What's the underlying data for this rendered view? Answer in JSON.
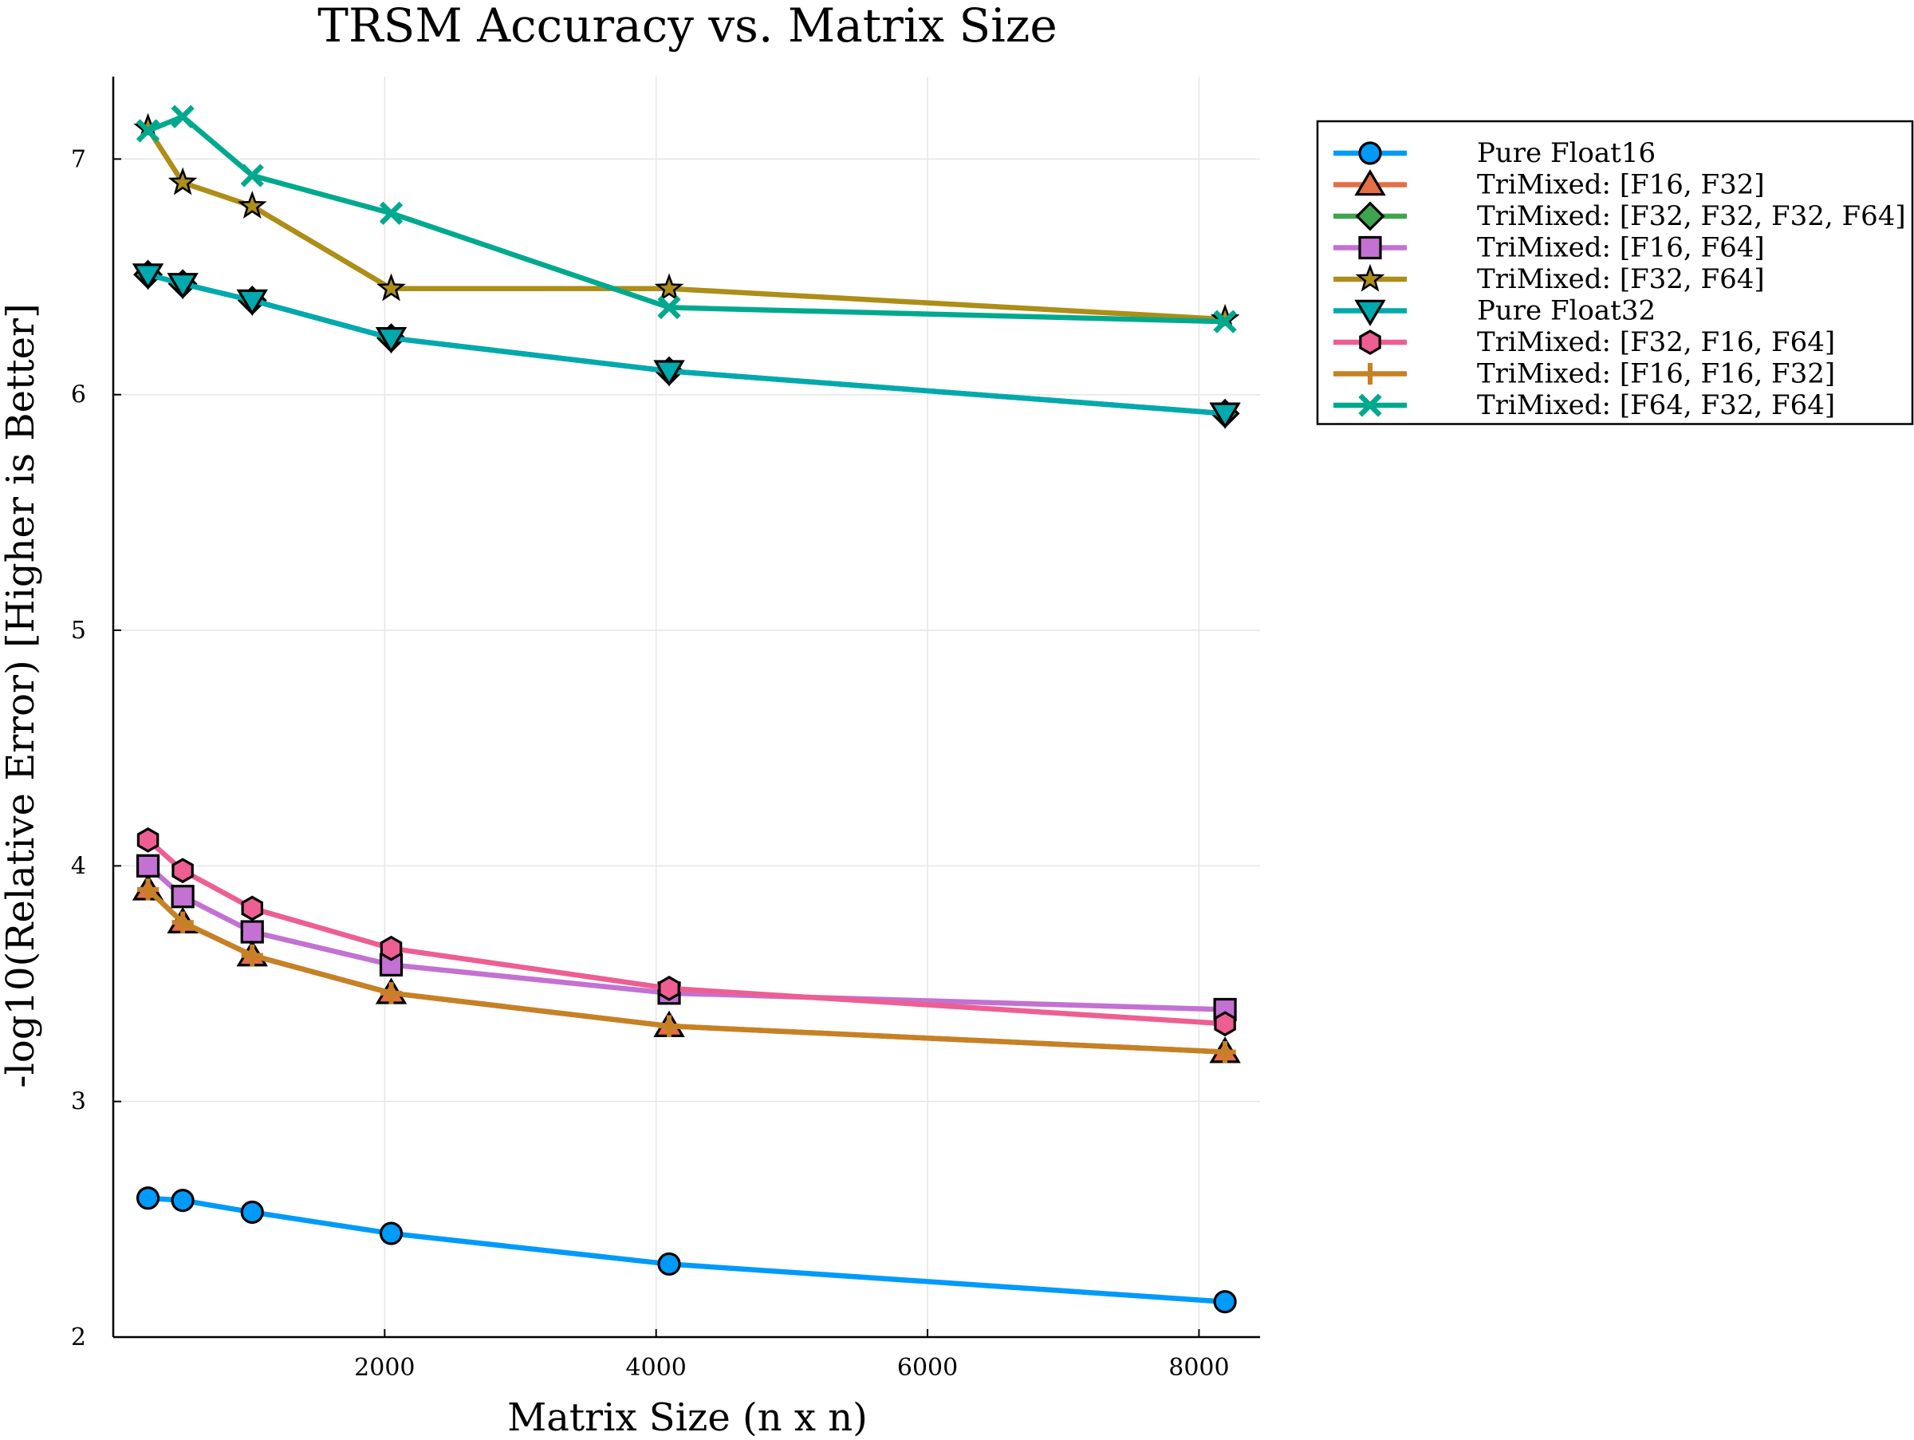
{
  "chart_data": {
    "type": "line",
    "title": "TRSM Accuracy vs. Matrix Size",
    "xlabel": "Matrix Size (n x n)",
    "ylabel": "-log10(Relative Error) [Higher is Better]",
    "xlim": [
      0,
      8450
    ],
    "ylim": [
      2,
      7.35
    ],
    "xticks": [
      2000,
      4000,
      6000,
      8000
    ],
    "yticks": [
      2,
      3,
      4,
      5,
      6,
      7
    ],
    "xtick_labels": [
      "2000",
      "4000",
      "6000",
      "8000"
    ],
    "ytick_labels": [
      "2",
      "3",
      "4",
      "5",
      "6",
      "7"
    ],
    "grid": true,
    "legend_position": "outside top-right",
    "x": [
      256,
      512,
      1024,
      2048,
      4096,
      8192
    ],
    "series": [
      {
        "name": "Pure Float16",
        "color": "#009AFA",
        "marker": "circle",
        "values": [
          2.59,
          2.58,
          2.53,
          2.44,
          2.31,
          2.15
        ]
      },
      {
        "name": "TriMixed: [F16, F32]",
        "color": "#E36F47",
        "marker": "triangle-up",
        "values": [
          3.9,
          3.76,
          3.62,
          3.46,
          3.32,
          3.21
        ]
      },
      {
        "name": "TriMixed: [F32, F32, F32, F64]",
        "color": "#3EA44E",
        "marker": "diamond",
        "values": [
          6.51,
          6.47,
          6.4,
          6.24,
          6.1,
          5.92
        ]
      },
      {
        "name": "TriMixed: [F16, F64]",
        "color": "#C371D2",
        "marker": "square",
        "values": [
          4.0,
          3.87,
          3.72,
          3.58,
          3.46,
          3.39
        ]
      },
      {
        "name": "TriMixed: [F32, F64]",
        "color": "#AC8E18",
        "marker": "star",
        "values": [
          7.13,
          6.9,
          6.8,
          6.45,
          6.45,
          6.32
        ]
      },
      {
        "name": "Pure Float32",
        "color": "#00A9AD",
        "marker": "triangle-down",
        "values": [
          6.51,
          6.47,
          6.4,
          6.24,
          6.1,
          5.92
        ]
      },
      {
        "name": "TriMixed: [F32, F16, F64]",
        "color": "#ED5E93",
        "marker": "hexagon",
        "values": [
          4.11,
          3.98,
          3.82,
          3.65,
          3.48,
          3.33
        ]
      },
      {
        "name": "TriMixed: [F16, F16, F32]",
        "color": "#C68125",
        "marker": "cross",
        "values": [
          3.9,
          3.76,
          3.62,
          3.46,
          3.32,
          3.21
        ]
      },
      {
        "name": "TriMixed: [F64, F32, F64]",
        "color": "#00A98D",
        "marker": "x",
        "values": [
          7.12,
          7.18,
          6.93,
          6.77,
          6.37,
          6.31
        ]
      }
    ]
  }
}
